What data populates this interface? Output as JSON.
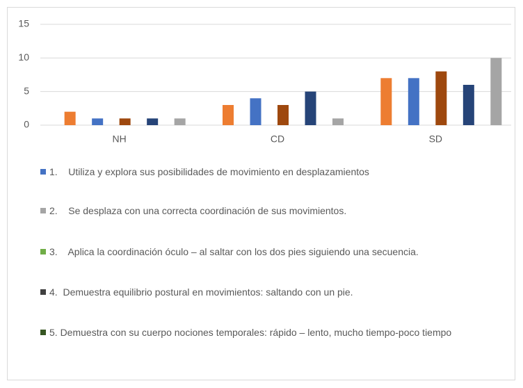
{
  "chart_data": {
    "type": "bar",
    "categories": [
      "NH",
      "CD",
      "SD"
    ],
    "series": [
      {
        "color": "#ED7D31",
        "values": [
          2,
          3,
          7
        ]
      },
      {
        "color": "#4472C4",
        "values": [
          1,
          4,
          7
        ]
      },
      {
        "color": "#9E480E",
        "values": [
          1,
          3,
          8
        ]
      },
      {
        "color": "#264478",
        "values": [
          1,
          5,
          6
        ]
      },
      {
        "color": "#A5A5A5",
        "values": [
          1,
          1,
          10
        ]
      }
    ],
    "ylim": [
      0,
      15
    ],
    "yticks": [
      0,
      5,
      10,
      15
    ],
    "grid": true,
    "legend_items": [
      {
        "name": "1.    Utiliza y explora sus posibilidades de movimiento en desplazamientos",
        "color": "#4472C4"
      },
      {
        "name": "2.    Se desplaza con una correcta coordinación de sus movimientos.",
        "color": "#A5A5A5"
      },
      {
        "name": "3.    Aplica la coordinación óculo – al saltar con los dos pies siguiendo una secuencia.",
        "color": "#70AD47"
      },
      {
        "name": "4.  Demuestra equilibrio postural en movimientos: saltando con un pie.",
        "color": "#404040"
      },
      {
        "name": "5. Demuestra con su cuerpo nociones temporales: rápido – lento, mucho tiempo-poco tiempo",
        "color": "#375623"
      }
    ]
  }
}
